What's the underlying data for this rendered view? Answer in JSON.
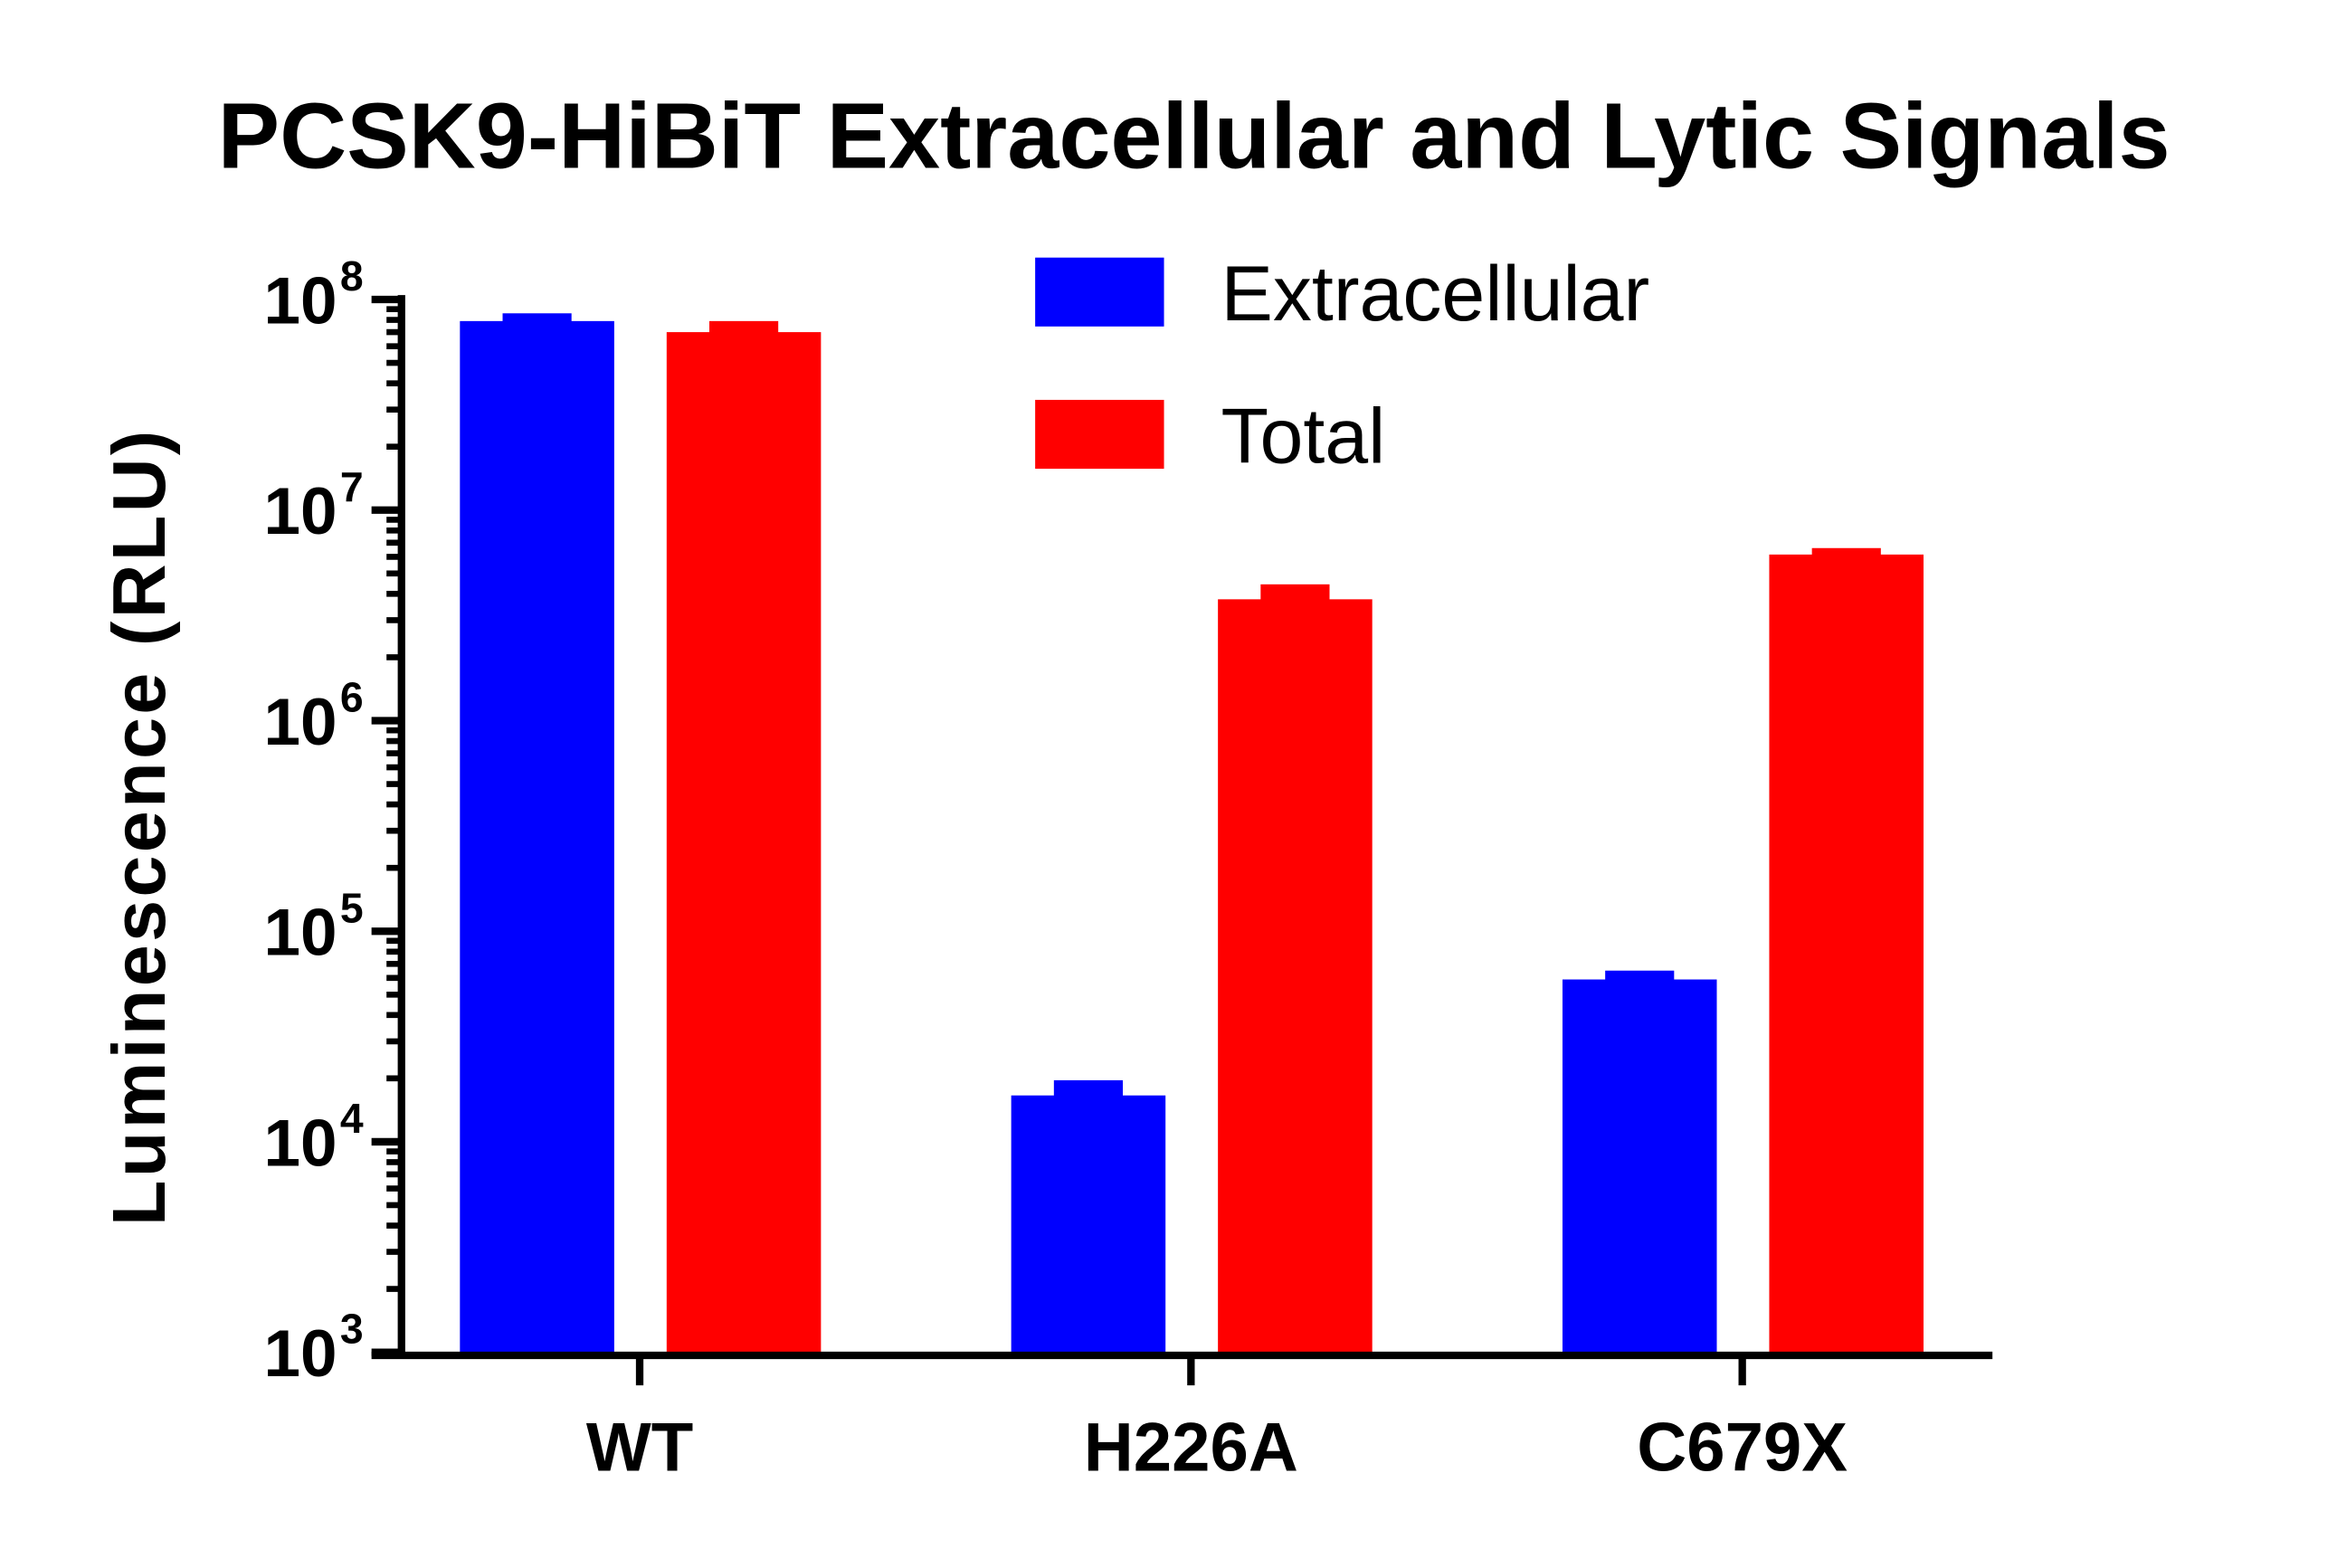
{
  "chart_data": {
    "type": "bar",
    "title": "PCSK9-HiBiT Extracellular and Lytic Signals",
    "xlabel": "",
    "ylabel": "Luminescence (RLU)",
    "yscale": "log",
    "ylim": [
      1000,
      100000000
    ],
    "yticks": [
      {
        "base": "10",
        "exp": "3",
        "value": 1000
      },
      {
        "base": "10",
        "exp": "4",
        "value": 10000
      },
      {
        "base": "10",
        "exp": "5",
        "value": 100000
      },
      {
        "base": "10",
        "exp": "6",
        "value": 1000000
      },
      {
        "base": "10",
        "exp": "7",
        "value": 10000000
      },
      {
        "base": "10",
        "exp": "8",
        "value": 100000000
      }
    ],
    "categories": [
      "WT",
      "H226A",
      "C679X"
    ],
    "grid": false,
    "legend_position": "top-center",
    "series": [
      {
        "name": "Extracellular",
        "color": "#0000ff",
        "values": [
          79000000,
          16600,
          59000
        ],
        "error_upper": [
          86000000,
          19600,
          65000
        ]
      },
      {
        "name": "Total",
        "color": "#ff0000",
        "values": [
          70000000,
          3770000,
          6150000
        ],
        "error_upper": [
          79000000,
          4440000,
          6600000
        ]
      }
    ]
  }
}
